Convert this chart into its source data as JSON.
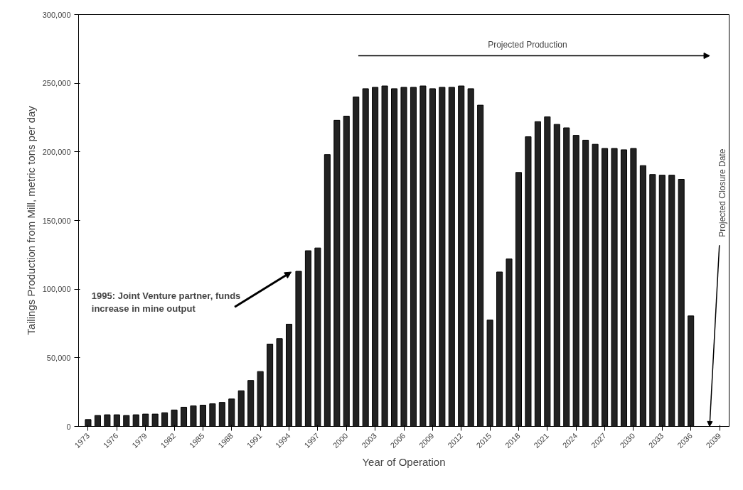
{
  "chart_data": {
    "type": "bar",
    "xlabel": "Year of Operation",
    "ylabel": "Tailings Production from Mill, metric tons per day",
    "x": [
      1973,
      1974,
      1975,
      1976,
      1977,
      1978,
      1979,
      1980,
      1981,
      1982,
      1983,
      1984,
      1985,
      1986,
      1987,
      1988,
      1989,
      1990,
      1991,
      1992,
      1993,
      1994,
      1995,
      1996,
      1997,
      1998,
      1999,
      2000,
      2001,
      2002,
      2003,
      2004,
      2005,
      2006,
      2007,
      2008,
      2009,
      2010,
      2011,
      2012,
      2013,
      2014,
      2015,
      2016,
      2017,
      2018,
      2019,
      2020,
      2021,
      2022,
      2023,
      2024,
      2025,
      2026,
      2027,
      2028,
      2029,
      2030,
      2031,
      2032,
      2033,
      2034,
      2035,
      2036
    ],
    "values": [
      5000,
      8000,
      8500,
      8500,
      8000,
      8500,
      9000,
      9000,
      10000,
      12000,
      14000,
      15000,
      15500,
      16500,
      17500,
      20000,
      26000,
      33500,
      40000,
      60000,
      64000,
      74500,
      113000,
      128000,
      130000,
      198000,
      223000,
      226000,
      240000,
      246000,
      247000,
      248000,
      246000,
      247000,
      247000,
      248000,
      246000,
      247000,
      247000,
      248000,
      246000,
      234000,
      77500,
      112500,
      122000,
      185000,
      211000,
      222000,
      225500,
      220000,
      217500,
      212000,
      208500,
      205500,
      202500,
      202500,
      201500,
      202500,
      190000,
      183500,
      183000,
      183000,
      180000,
      80500
    ],
    "color": "#222222",
    "xlim": [
      1972,
      2040
    ],
    "xticks": [
      1973,
      1976,
      1979,
      1982,
      1985,
      1988,
      1991,
      1994,
      1997,
      2000,
      2003,
      2006,
      2009,
      2012,
      2015,
      2018,
      2021,
      2024,
      2027,
      2030,
      2033,
      2036,
      2039
    ],
    "ylim": [
      0,
      300000
    ],
    "yticks": [
      {
        "value": 0,
        "label": "0"
      },
      {
        "value": 50000,
        "label": "50,000"
      },
      {
        "value": 100000,
        "label": "100,000"
      },
      {
        "value": 150000,
        "label": "150,000"
      },
      {
        "value": 200000,
        "label": "200,000"
      },
      {
        "value": 250000,
        "label": "250,000"
      },
      {
        "value": 300000,
        "label": "300,000"
      }
    ],
    "grid": false,
    "annotations": [
      "1995: Joint Venture partner, funds\nincrease in mine output",
      "Projected Production",
      "Projected Closure Date"
    ]
  }
}
